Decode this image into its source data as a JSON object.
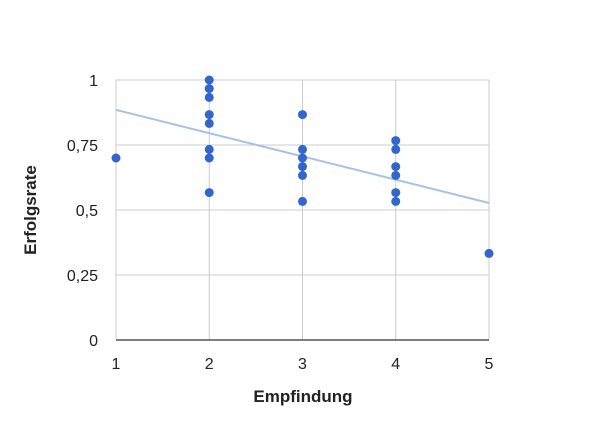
{
  "chart_data": {
    "type": "scatter",
    "title": "",
    "xlabel": "Empfindung",
    "ylabel": "Erfolgsrate",
    "xlim": [
      1,
      5
    ],
    "ylim": [
      0,
      1
    ],
    "x_ticks": [
      1,
      2,
      3,
      4,
      5
    ],
    "x_tick_labels": [
      "1",
      "2",
      "3",
      "4",
      "5"
    ],
    "y_ticks": [
      0,
      0.25,
      0.5,
      0.75,
      1
    ],
    "y_tick_labels": [
      "0",
      "0,25",
      "0,5",
      "0,75",
      "1"
    ],
    "grid": true,
    "legend": "none",
    "series": [
      {
        "points": [
          {
            "x": 1,
            "y": 0.7
          },
          {
            "x": 2,
            "y": 1.0
          },
          {
            "x": 2,
            "y": 0.967
          },
          {
            "x": 2,
            "y": 0.933
          },
          {
            "x": 2,
            "y": 0.867
          },
          {
            "x": 2,
            "y": 0.833
          },
          {
            "x": 2,
            "y": 0.733
          },
          {
            "x": 2,
            "y": 0.7
          },
          {
            "x": 2,
            "y": 0.567
          },
          {
            "x": 3,
            "y": 0.867
          },
          {
            "x": 3,
            "y": 0.733
          },
          {
            "x": 3,
            "y": 0.7
          },
          {
            "x": 3,
            "y": 0.667
          },
          {
            "x": 3,
            "y": 0.633
          },
          {
            "x": 3,
            "y": 0.533
          },
          {
            "x": 4,
            "y": 0.767
          },
          {
            "x": 4,
            "y": 0.733
          },
          {
            "x": 4,
            "y": 0.667
          },
          {
            "x": 4,
            "y": 0.633
          },
          {
            "x": 4,
            "y": 0.567
          },
          {
            "x": 4,
            "y": 0.533
          },
          {
            "x": 5,
            "y": 0.333
          }
        ]
      }
    ],
    "trendline": {
      "x": [
        1,
        5
      ],
      "y": [
        0.885,
        0.527
      ]
    },
    "colors": {
      "points": "#3366cc",
      "trendline": "#a8c1ea",
      "grid": "#cccccc",
      "axis": "#333333"
    }
  }
}
